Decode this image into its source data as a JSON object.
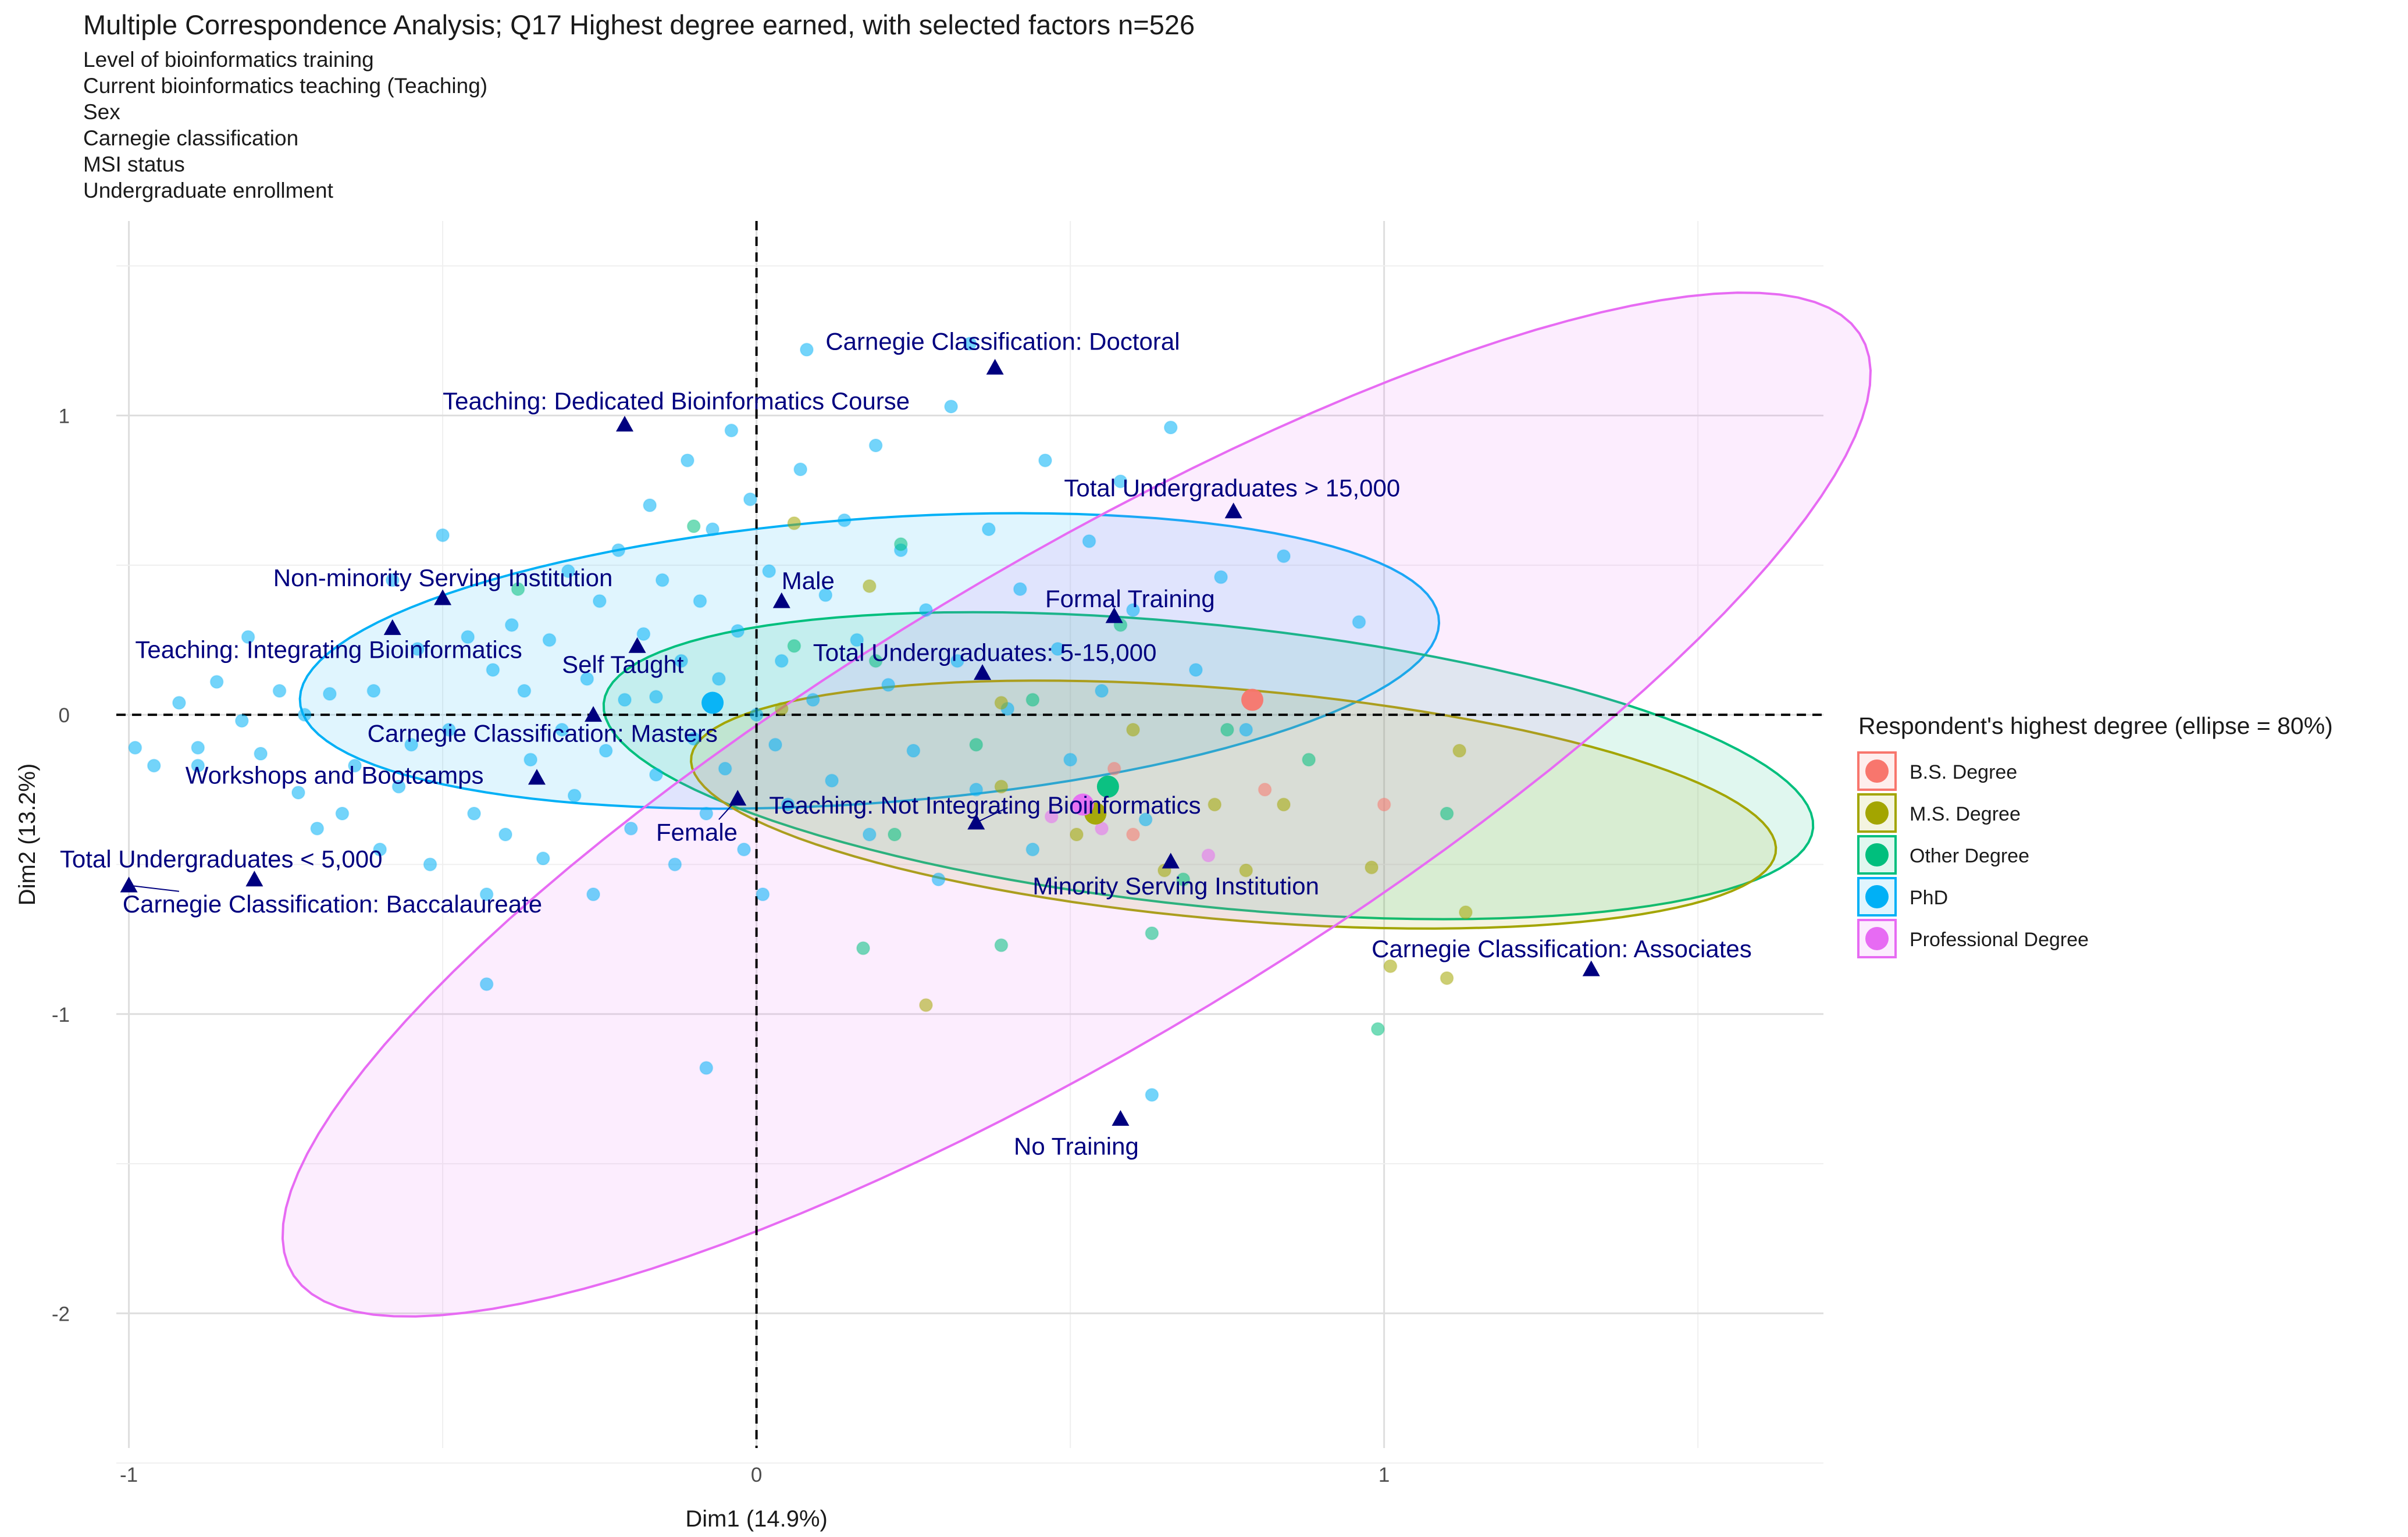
{
  "chart_data": {
    "type": "scatter",
    "title": "Multiple Correspondence Analysis; Q17 Highest degree earned, with selected factors n=526",
    "subtitle": [
      "Level of bioinformatics training",
      "Current bioinformatics teaching (Teaching)",
      "Sex",
      "Carnegie classification",
      "MSI status",
      "Undergraduate enrollment"
    ],
    "xlabel": "Dim1 (14.9%)",
    "ylabel": "Dim2 (13.2%)",
    "xlim": [
      -1.02,
      1.7
    ],
    "ylim": [
      -2.45,
      1.65
    ],
    "x_ticks": [
      -1,
      0,
      1
    ],
    "y_ticks": [
      -2,
      -1,
      0,
      1
    ],
    "grid": true,
    "reference_lines": {
      "x": 0,
      "y": 0,
      "style": "dashed"
    },
    "legend": {
      "title": "Respondent's highest degree (ellipse = 80%)",
      "position": "right",
      "entries": [
        {
          "name": "B.S. Degree",
          "color": "#F8766D"
        },
        {
          "name": "M.S. Degree",
          "color": "#A3A500"
        },
        {
          "name": "Other Degree",
          "color": "#00BF7D"
        },
        {
          "name": "PhD",
          "color": "#00B0F6"
        },
        {
          "name": "Professional Degree",
          "color": "#E76BF3"
        }
      ]
    },
    "ellipses": [
      {
        "group": "PhD",
        "cx": 0.18,
        "cy": 0.18,
        "a": 0.92,
        "b": 0.47,
        "angle_deg": 11
      },
      {
        "group": "Other Degree",
        "cx": 0.72,
        "cy": -0.17,
        "a": 0.99,
        "b": 0.46,
        "angle_deg": -15
      },
      {
        "group": "M.S. Degree",
        "cx": 0.76,
        "cy": -0.3,
        "a": 0.88,
        "b": 0.38,
        "angle_deg": -12
      },
      {
        "group": "Professional Degree",
        "cx": 0.51,
        "cy": -0.3,
        "a": 2.05,
        "b": 0.57,
        "angle_deg": 55
      }
    ],
    "group_centroids": [
      {
        "group": "B.S. Degree",
        "x": 0.79,
        "y": 0.05
      },
      {
        "group": "M.S. Degree",
        "x": 0.54,
        "y": -0.33
      },
      {
        "group": "Other Degree",
        "x": 0.56,
        "y": -0.24
      },
      {
        "group": "PhD",
        "x": -0.07,
        "y": 0.04
      },
      {
        "group": "Professional Degree",
        "x": 0.52,
        "y": -0.3
      }
    ],
    "category_points": [
      {
        "label": "Carnegie Classification: Doctoral",
        "x": 0.38,
        "y": 1.16
      },
      {
        "label": "Teaching: Dedicated Bioinformatics Course",
        "x": -0.21,
        "y": 0.97
      },
      {
        "label": "Total Undergraduates > 15,000",
        "x": 0.76,
        "y": 0.68
      },
      {
        "label": "Non-minority Serving Institution",
        "x": -0.5,
        "y": 0.39
      },
      {
        "label": "Male",
        "x": 0.04,
        "y": 0.38
      },
      {
        "label": "Formal Training",
        "x": 0.57,
        "y": 0.33
      },
      {
        "label": "Teaching: Integrating Bioinformatics",
        "x": -0.58,
        "y": 0.29
      },
      {
        "label": "Self Taught",
        "x": -0.19,
        "y": 0.23
      },
      {
        "label": "Total Undergraduates: 5-15,000",
        "x": 0.36,
        "y": 0.14
      },
      {
        "label": "Carnegie Classification: Masters",
        "x": -0.26,
        "y": 0.0
      },
      {
        "label": "Workshops and Bootcamps",
        "x": -0.35,
        "y": -0.21
      },
      {
        "label": "Female",
        "x": -0.03,
        "y": -0.28
      },
      {
        "label": "Teaching: Not Integrating Bioinformatics",
        "x": 0.35,
        "y": -0.36
      },
      {
        "label": "Minority Serving Institution",
        "x": 0.66,
        "y": -0.49
      },
      {
        "label": "Total Undergraduates < 5,000",
        "x": -0.8,
        "y": -0.55
      },
      {
        "label": "Carnegie Classification: Baccalaureate",
        "x": -1.0,
        "y": -0.57
      },
      {
        "label": "Carnegie Classification: Associates",
        "x": 1.33,
        "y": -0.85
      },
      {
        "label": "No Training",
        "x": 0.58,
        "y": -1.35
      }
    ],
    "respondents": [
      {
        "group": "PhD",
        "x": -0.99,
        "y": -0.11
      },
      {
        "group": "PhD",
        "x": -0.96,
        "y": -0.17
      },
      {
        "group": "PhD",
        "x": -0.92,
        "y": 0.04
      },
      {
        "group": "PhD",
        "x": -0.89,
        "y": -0.11
      },
      {
        "group": "PhD",
        "x": -0.86,
        "y": 0.11
      },
      {
        "group": "PhD",
        "x": -0.82,
        "y": -0.02
      },
      {
        "group": "PhD",
        "x": -0.81,
        "y": 0.26
      },
      {
        "group": "PhD",
        "x": -0.79,
        "y": -0.13
      },
      {
        "group": "PhD",
        "x": -0.76,
        "y": 0.08
      },
      {
        "group": "PhD",
        "x": -0.73,
        "y": -0.26
      },
      {
        "group": "PhD",
        "x": -0.72,
        "y": 0.0
      },
      {
        "group": "PhD",
        "x": -0.7,
        "y": -0.38
      },
      {
        "group": "PhD",
        "x": -0.68,
        "y": 0.07
      },
      {
        "group": "PhD",
        "x": -0.66,
        "y": -0.33
      },
      {
        "group": "PhD",
        "x": -0.64,
        "y": -0.17
      },
      {
        "group": "PhD",
        "x": -0.61,
        "y": 0.08
      },
      {
        "group": "PhD",
        "x": -0.6,
        "y": -0.45
      },
      {
        "group": "PhD",
        "x": -0.58,
        "y": 0.45
      },
      {
        "group": "PhD",
        "x": -0.57,
        "y": -0.24
      },
      {
        "group": "PhD",
        "x": -0.55,
        "y": -0.1
      },
      {
        "group": "PhD",
        "x": -0.54,
        "y": 0.22
      },
      {
        "group": "PhD",
        "x": -0.52,
        "y": -0.5
      },
      {
        "group": "PhD",
        "x": -0.5,
        "y": 0.6
      },
      {
        "group": "PhD",
        "x": -0.49,
        "y": -0.05
      },
      {
        "group": "PhD",
        "x": -0.46,
        "y": 0.26
      },
      {
        "group": "PhD",
        "x": -0.45,
        "y": -0.33
      },
      {
        "group": "PhD",
        "x": -0.43,
        "y": -0.6
      },
      {
        "group": "PhD",
        "x": -0.42,
        "y": 0.15
      },
      {
        "group": "PhD",
        "x": -0.4,
        "y": -0.4
      },
      {
        "group": "PhD",
        "x": -0.39,
        "y": 0.3
      },
      {
        "group": "PhD",
        "x": -0.37,
        "y": 0.08
      },
      {
        "group": "PhD",
        "x": -0.36,
        "y": -0.15
      },
      {
        "group": "PhD",
        "x": -0.34,
        "y": -0.48
      },
      {
        "group": "PhD",
        "x": -0.33,
        "y": 0.25
      },
      {
        "group": "PhD",
        "x": -0.31,
        "y": -0.05
      },
      {
        "group": "PhD",
        "x": -0.3,
        "y": 0.48
      },
      {
        "group": "PhD",
        "x": -0.29,
        "y": -0.27
      },
      {
        "group": "PhD",
        "x": -0.27,
        "y": 0.12
      },
      {
        "group": "PhD",
        "x": -0.26,
        "y": -0.6
      },
      {
        "group": "PhD",
        "x": -0.25,
        "y": 0.38
      },
      {
        "group": "PhD",
        "x": -0.24,
        "y": -0.12
      },
      {
        "group": "PhD",
        "x": -0.22,
        "y": 0.55
      },
      {
        "group": "PhD",
        "x": -0.21,
        "y": 0.05
      },
      {
        "group": "PhD",
        "x": -0.2,
        "y": -0.38
      },
      {
        "group": "PhD",
        "x": -0.18,
        "y": 0.27
      },
      {
        "group": "PhD",
        "x": -0.17,
        "y": 0.7
      },
      {
        "group": "PhD",
        "x": -0.16,
        "y": -0.2
      },
      {
        "group": "PhD",
        "x": -0.15,
        "y": 0.45
      },
      {
        "group": "PhD",
        "x": -0.13,
        "y": -0.5
      },
      {
        "group": "PhD",
        "x": -0.12,
        "y": 0.18
      },
      {
        "group": "PhD",
        "x": -0.11,
        "y": 0.85
      },
      {
        "group": "PhD",
        "x": -0.1,
        "y": -0.08
      },
      {
        "group": "PhD",
        "x": -0.09,
        "y": 0.38
      },
      {
        "group": "PhD",
        "x": -0.08,
        "y": -0.33
      },
      {
        "group": "PhD",
        "x": -0.07,
        "y": 0.62
      },
      {
        "group": "PhD",
        "x": -0.06,
        "y": 0.12
      },
      {
        "group": "PhD",
        "x": -0.05,
        "y": -0.18
      },
      {
        "group": "PhD",
        "x": -0.04,
        "y": 0.95
      },
      {
        "group": "PhD",
        "x": -0.03,
        "y": 0.28
      },
      {
        "group": "PhD",
        "x": -0.02,
        "y": -0.45
      },
      {
        "group": "PhD",
        "x": -0.01,
        "y": 0.72
      },
      {
        "group": "PhD",
        "x": 0.0,
        "y": 0.0
      },
      {
        "group": "PhD",
        "x": 0.01,
        "y": -0.6
      },
      {
        "group": "PhD",
        "x": 0.02,
        "y": 0.48
      },
      {
        "group": "PhD",
        "x": 0.04,
        "y": 0.18
      },
      {
        "group": "PhD",
        "x": 0.05,
        "y": -0.3
      },
      {
        "group": "PhD",
        "x": 0.07,
        "y": 0.82
      },
      {
        "group": "PhD",
        "x": 0.08,
        "y": 1.22
      },
      {
        "group": "PhD",
        "x": 0.09,
        "y": 0.05
      },
      {
        "group": "PhD",
        "x": 0.11,
        "y": 0.4
      },
      {
        "group": "PhD",
        "x": 0.12,
        "y": -0.22
      },
      {
        "group": "PhD",
        "x": 0.14,
        "y": 0.65
      },
      {
        "group": "PhD",
        "x": 0.16,
        "y": 0.25
      },
      {
        "group": "PhD",
        "x": 0.18,
        "y": -0.4
      },
      {
        "group": "PhD",
        "x": 0.19,
        "y": 0.9
      },
      {
        "group": "PhD",
        "x": 0.21,
        "y": 0.1
      },
      {
        "group": "PhD",
        "x": 0.23,
        "y": 0.55
      },
      {
        "group": "PhD",
        "x": 0.25,
        "y": -0.12
      },
      {
        "group": "PhD",
        "x": 0.27,
        "y": 0.35
      },
      {
        "group": "PhD",
        "x": 0.29,
        "y": -0.55
      },
      {
        "group": "PhD",
        "x": 0.31,
        "y": 1.03
      },
      {
        "group": "PhD",
        "x": 0.32,
        "y": 0.18
      },
      {
        "group": "PhD",
        "x": 0.34,
        "y": 1.24
      },
      {
        "group": "PhD",
        "x": 0.35,
        "y": -0.25
      },
      {
        "group": "PhD",
        "x": 0.37,
        "y": 0.62
      },
      {
        "group": "PhD",
        "x": 0.4,
        "y": 0.02
      },
      {
        "group": "PhD",
        "x": 0.42,
        "y": 0.42
      },
      {
        "group": "PhD",
        "x": 0.44,
        "y": -0.45
      },
      {
        "group": "PhD",
        "x": 0.46,
        "y": 0.85
      },
      {
        "group": "PhD",
        "x": 0.48,
        "y": 0.22
      },
      {
        "group": "PhD",
        "x": 0.5,
        "y": -0.15
      },
      {
        "group": "PhD",
        "x": 0.53,
        "y": 0.58
      },
      {
        "group": "PhD",
        "x": 0.55,
        "y": 0.08
      },
      {
        "group": "PhD",
        "x": 0.58,
        "y": 0.78
      },
      {
        "group": "PhD",
        "x": 0.6,
        "y": 0.35
      },
      {
        "group": "PhD",
        "x": 0.62,
        "y": -0.35
      },
      {
        "group": "PhD",
        "x": 0.66,
        "y": 0.96
      },
      {
        "group": "PhD",
        "x": 0.7,
        "y": 0.15
      },
      {
        "group": "PhD",
        "x": 0.74,
        "y": 0.46
      },
      {
        "group": "PhD",
        "x": 0.78,
        "y": -0.05
      },
      {
        "group": "PhD",
        "x": 0.84,
        "y": 0.53
      },
      {
        "group": "PhD",
        "x": 0.96,
        "y": 0.31
      },
      {
        "group": "PhD",
        "x": -0.08,
        "y": -1.18
      },
      {
        "group": "PhD",
        "x": -0.43,
        "y": -0.9
      },
      {
        "group": "PhD",
        "x": 0.63,
        "y": -1.27
      },
      {
        "group": "PhD",
        "x": -0.89,
        "y": -0.17
      },
      {
        "group": "PhD",
        "x": -0.16,
        "y": 0.06
      },
      {
        "group": "PhD",
        "x": 0.03,
        "y": -0.1
      },
      {
        "group": "Other Degree",
        "x": -0.1,
        "y": 0.63
      },
      {
        "group": "Other Degree",
        "x": 0.06,
        "y": 0.23
      },
      {
        "group": "Other Degree",
        "x": 0.19,
        "y": 0.18
      },
      {
        "group": "Other Degree",
        "x": 0.23,
        "y": 0.57
      },
      {
        "group": "Other Degree",
        "x": 0.35,
        "y": -0.1
      },
      {
        "group": "Other Degree",
        "x": 0.44,
        "y": 0.05
      },
      {
        "group": "Other Degree",
        "x": 0.58,
        "y": 0.3
      },
      {
        "group": "Other Degree",
        "x": 0.68,
        "y": -0.55
      },
      {
        "group": "Other Degree",
        "x": 0.75,
        "y": -0.05
      },
      {
        "group": "Other Degree",
        "x": 0.88,
        "y": -0.15
      },
      {
        "group": "Other Degree",
        "x": 1.1,
        "y": -0.33
      },
      {
        "group": "Other Degree",
        "x": 0.39,
        "y": -0.77
      },
      {
        "group": "Other Degree",
        "x": 0.17,
        "y": -0.78
      },
      {
        "group": "Other Degree",
        "x": 0.22,
        "y": -0.4
      },
      {
        "group": "Other Degree",
        "x": 0.99,
        "y": -1.05
      },
      {
        "group": "Other Degree",
        "x": 0.63,
        "y": -0.73
      },
      {
        "group": "Other Degree",
        "x": -0.38,
        "y": 0.42
      },
      {
        "group": "M.S. Degree",
        "x": 0.06,
        "y": 0.64
      },
      {
        "group": "M.S. Degree",
        "x": 0.18,
        "y": 0.43
      },
      {
        "group": "M.S. Degree",
        "x": 0.39,
        "y": 0.04
      },
      {
        "group": "M.S. Degree",
        "x": 0.51,
        "y": -0.4
      },
      {
        "group": "M.S. Degree",
        "x": 0.6,
        "y": -0.05
      },
      {
        "group": "M.S. Degree",
        "x": 0.65,
        "y": -0.52
      },
      {
        "group": "M.S. Degree",
        "x": 0.73,
        "y": -0.3
      },
      {
        "group": "M.S. Degree",
        "x": 0.84,
        "y": -0.3
      },
      {
        "group": "M.S. Degree",
        "x": 0.98,
        "y": -0.51
      },
      {
        "group": "M.S. Degree",
        "x": 1.12,
        "y": -0.12
      },
      {
        "group": "M.S. Degree",
        "x": 1.13,
        "y": -0.66
      },
      {
        "group": "M.S. Degree",
        "x": 1.01,
        "y": -0.84
      },
      {
        "group": "M.S. Degree",
        "x": 1.1,
        "y": -0.88
      },
      {
        "group": "M.S. Degree",
        "x": 0.27,
        "y": -0.97
      },
      {
        "group": "M.S. Degree",
        "x": 0.04,
        "y": 0.02
      },
      {
        "group": "M.S. Degree",
        "x": 0.39,
        "y": -0.24
      },
      {
        "group": "M.S. Degree",
        "x": 0.78,
        "y": -0.52
      },
      {
        "group": "B.S. Degree",
        "x": 0.6,
        "y": -0.4
      },
      {
        "group": "B.S. Degree",
        "x": 1.0,
        "y": -0.3
      },
      {
        "group": "B.S. Degree",
        "x": 0.57,
        "y": -0.18
      },
      {
        "group": "B.S. Degree",
        "x": 0.81,
        "y": -0.25
      },
      {
        "group": "Professional Degree",
        "x": 0.72,
        "y": -0.47
      },
      {
        "group": "Professional Degree",
        "x": 0.47,
        "y": -0.34
      },
      {
        "group": "Professional Degree",
        "x": 0.55,
        "y": -0.38
      }
    ]
  }
}
